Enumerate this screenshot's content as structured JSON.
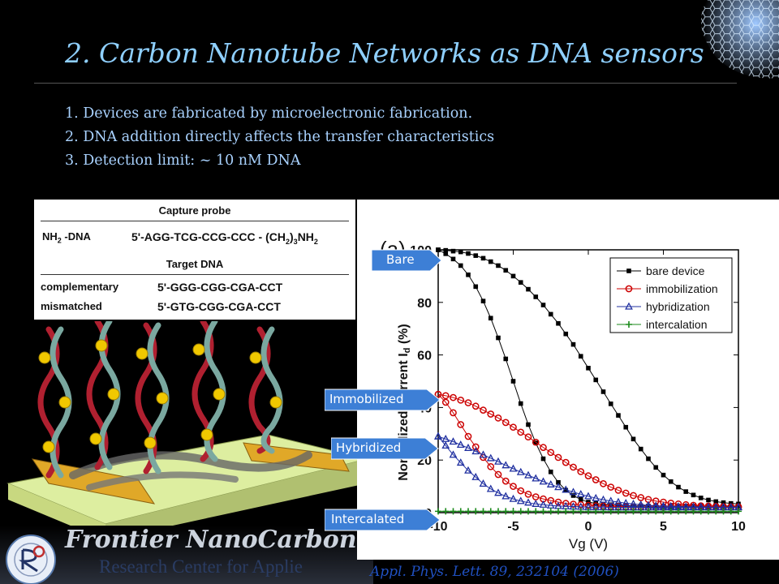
{
  "slide": {
    "title": "2. Carbon Nanotube Networks as DNA sensors",
    "bullets": [
      "1. Devices are fabricated by microelectronic fabrication.",
      "2. DNA addition directly affects the transfer characteristics",
      "3. Detection limit: ~ 10 nM  DNA"
    ],
    "citation": "Appl. Phys. Lett.   89, 232104 (2006)",
    "footer_title": "Frontier NanoCarbon",
    "footer_subtitle": "Research Center for Applie"
  },
  "probe_table": {
    "header_capture": "Capture probe",
    "capture_label": "NH",
    "capture_label_sub": "2",
    "capture_label_tail": " -DNA",
    "capture_seq": "5'-AGG-TCG-CCG-CCC - (CH",
    "capture_seq_sub": "2",
    "capture_seq_tail": ")",
    "capture_seq_sub2": "3",
    "capture_seq_end": "NH",
    "capture_seq_end_sub": "2",
    "header_target": "Target DNA",
    "rows": [
      {
        "label": "complementary",
        "seq": "5'-GGG-CGG-CGA-CCT"
      },
      {
        "label": "mismatched",
        "seq": "5'-GTG-CGG-CGA-CCT"
      }
    ]
  },
  "callouts": {
    "bare": "Bare",
    "immobilized": "Immobilized",
    "hybridized": "Hybridized",
    "intercalated": "Intercalated",
    "fill": "#3d7fd6"
  },
  "chart_data": {
    "type": "line",
    "panel_label": "(a)",
    "xlabel": "Vg (V)",
    "ylabel_main": "Normalized Current  I",
    "ylabel_sub": "d",
    "ylabel_unit": " (%)",
    "xlim": [
      -10,
      10
    ],
    "ylim": [
      0,
      100
    ],
    "xticks": [
      -10,
      -5,
      0,
      5,
      10
    ],
    "yticks": [
      0,
      20,
      40,
      60,
      80,
      100
    ],
    "legend_position": "top-right",
    "x": [
      -10,
      -9.5,
      -9,
      -8.5,
      -8,
      -7.5,
      -7,
      -6.5,
      -6,
      -5.5,
      -5,
      -4.5,
      -4,
      -3.5,
      -3,
      -2.5,
      -2,
      -1.5,
      -1,
      -0.5,
      0,
      0.5,
      1,
      1.5,
      2,
      2.5,
      3,
      3.5,
      4,
      4.5,
      5,
      5.5,
      6,
      6.5,
      7,
      7.5,
      8,
      8.5,
      9,
      9.5,
      10
    ],
    "series": [
      {
        "name": "bare device",
        "marker": "square",
        "color": "#000000",
        "values": [
          100,
          99.8,
          99.5,
          99.2,
          98.6,
          97.8,
          96.8,
          95.5,
          94,
          92.2,
          90,
          87.6,
          85,
          82.1,
          79,
          75.5,
          72,
          68,
          64,
          59.5,
          55,
          50.5,
          46,
          41.4,
          37,
          32.5,
          28,
          24.2,
          20.5,
          17.2,
          14.3,
          11.8,
          9.7,
          8,
          6.7,
          5.6,
          4.8,
          4.2,
          3.8,
          3.5,
          3.3
        ]
      },
      {
        "name": "bare device",
        "marker": "square",
        "color": "#000000",
        "values": [
          100,
          98.5,
          96.5,
          94,
          90.5,
          86,
          80.5,
          74,
          66.5,
          58.5,
          50,
          41.5,
          33.5,
          26.5,
          20.5,
          15.5,
          11.5,
          8.5,
          6.5,
          5,
          4,
          3.5,
          3.2,
          3,
          2.8,
          2.7,
          2.6,
          2.6,
          2.5,
          2.5,
          2.5,
          2.5,
          2.5,
          2.5,
          2.5,
          2.5,
          2.5,
          2.5,
          2.5,
          2.5,
          2.5
        ]
      },
      {
        "name": "immobilization",
        "marker": "circle",
        "color": "#cc0000",
        "values": [
          45,
          44.5,
          43.8,
          42.8,
          41.8,
          40.5,
          39,
          37.5,
          36,
          34.3,
          32.5,
          30.6,
          28.8,
          26.8,
          24.8,
          22.9,
          21,
          19.1,
          17.3,
          15.6,
          14,
          12.5,
          11,
          9.7,
          8.5,
          7.4,
          6.5,
          5.7,
          5,
          4.4,
          4,
          3.6,
          3.3,
          3,
          2.8,
          2.6,
          2.5,
          2.4,
          2.3,
          2.2,
          2.2
        ]
      },
      {
        "name": "immobilization",
        "marker": "circle",
        "color": "#cc0000",
        "values": [
          45,
          42,
          38,
          33.5,
          29,
          25,
          21,
          17.5,
          14.5,
          12,
          10,
          8.3,
          7,
          6,
          5.2,
          4.6,
          4,
          3.5,
          3.2,
          3,
          2.8,
          2.6,
          2.5,
          2.4,
          2.3,
          2.2,
          2.2,
          2.2,
          2.1,
          2.1,
          2.1,
          2.1,
          2.1,
          2.1,
          2.1,
          2.1,
          2.1,
          2.1,
          2.1,
          2.1,
          2.1
        ]
      },
      {
        "name": "hybridization",
        "marker": "triangle",
        "color": "#2030a0",
        "values": [
          29,
          28,
          27,
          25.8,
          24.6,
          23.3,
          22,
          20.7,
          19.4,
          18,
          16.7,
          15.4,
          14.2,
          13,
          11.8,
          10.7,
          9.7,
          8.7,
          7.8,
          7,
          6.2,
          5.5,
          4.9,
          4.4,
          4,
          3.6,
          3.3,
          3,
          2.8,
          2.6,
          2.5,
          2.4,
          2.3,
          2.2,
          2.2,
          2.2,
          2.1,
          2.1,
          2.1,
          2.1,
          2.1
        ]
      },
      {
        "name": "hybridization",
        "marker": "triangle",
        "color": "#2030a0",
        "values": [
          29,
          25.5,
          22,
          19,
          16,
          13.5,
          11,
          9,
          7.5,
          6.2,
          5.2,
          4.4,
          3.8,
          3.3,
          3,
          2.7,
          2.5,
          2.4,
          2.3,
          2.2,
          2.1,
          2.1,
          2.1,
          2,
          2,
          2,
          2,
          2,
          2,
          2,
          2,
          2,
          2,
          2,
          2,
          2,
          2,
          2,
          2,
          2,
          2
        ]
      },
      {
        "name": "intercalation",
        "marker": "plus",
        "color": "#1a8a1a",
        "values": [
          0.5,
          0.5,
          0.5,
          0.5,
          0.5,
          0.5,
          0.5,
          0.5,
          0.5,
          0.5,
          0.5,
          0.5,
          0.5,
          0.5,
          0.5,
          0.5,
          0.5,
          0.5,
          0.5,
          0.5,
          0.5,
          0.5,
          0.5,
          0.5,
          0.5,
          0.5,
          0.5,
          0.5,
          0.5,
          0.5,
          0.5,
          0.5,
          0.5,
          0.5,
          0.5,
          0.5,
          0.5,
          0.5,
          0.5,
          0.5,
          0.5
        ]
      }
    ],
    "legend": [
      {
        "label": "bare device",
        "marker": "square",
        "color": "#000000"
      },
      {
        "label": "immobilization",
        "marker": "circle",
        "color": "#cc0000"
      },
      {
        "label": "hybridization",
        "marker": "triangle",
        "color": "#2030a0"
      },
      {
        "label": "intercalation",
        "marker": "plus",
        "color": "#1a8a1a"
      }
    ]
  }
}
